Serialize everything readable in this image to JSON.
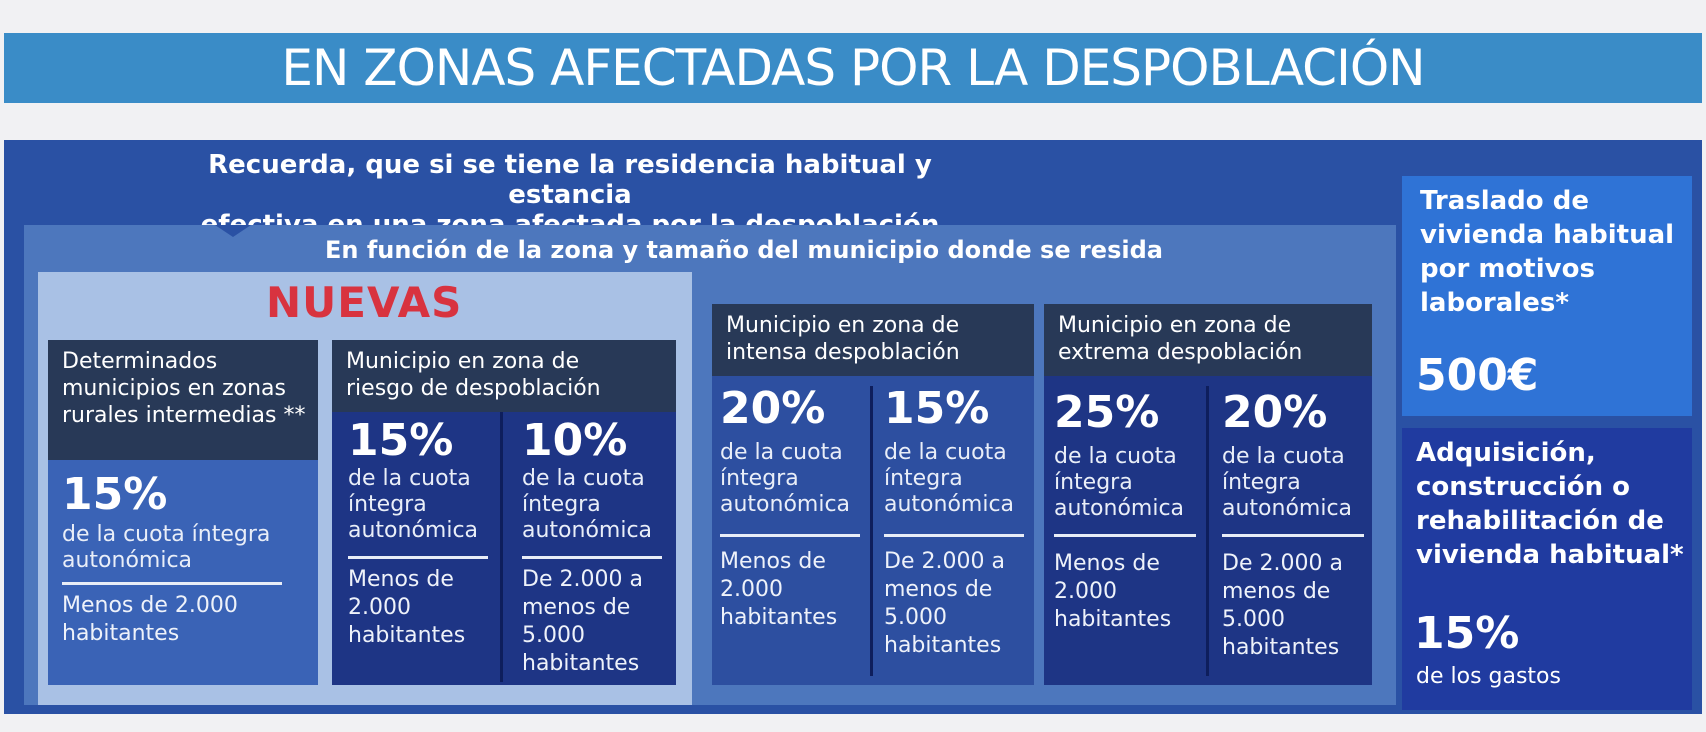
{
  "banner": {
    "title": "EN ZONAS AFECTADAS POR LA DESPOBLACIÓN"
  },
  "intro": {
    "line1": "Recuerda, que si se tiene la residencia habitual y estancia",
    "line2": "efectiva en una zona afectada por la despoblación"
  },
  "zone": {
    "subtitle": "En función de la zona y tamaño del municipio donde se resida",
    "nuevas_label": "NUEVAS",
    "rural": {
      "header": [
        "Determinados",
        "municipios en zonas",
        "rurales intermedias **"
      ],
      "pct": "15%",
      "desc": [
        "de la cuota íntegra",
        "autonómica"
      ],
      "pop": [
        "Menos de 2.000",
        "habitantes"
      ]
    },
    "riesgo": {
      "header": [
        "Municipio en zona de",
        "riesgo de despoblación"
      ],
      "a": {
        "pct": "15%",
        "desc": [
          "de la cuota",
          "íntegra",
          "autonómica"
        ],
        "pop": [
          "Menos de",
          "2.000",
          "habitantes"
        ]
      },
      "b": {
        "pct": "10%",
        "desc": [
          "de la cuota",
          "íntegra",
          "autonómica"
        ],
        "pop": [
          "De 2.000 a",
          "menos de",
          "5.000",
          "habitantes"
        ]
      }
    },
    "intensa": {
      "header": [
        "Municipio en zona de",
        "intensa despoblación"
      ],
      "a": {
        "pct": "20%",
        "desc": [
          "de la cuota",
          "íntegra",
          "autonómica"
        ],
        "pop": [
          "Menos de",
          "2.000",
          "habitantes"
        ]
      },
      "b": {
        "pct": "15%",
        "desc": [
          "de la cuota",
          "íntegra",
          "autonómica"
        ],
        "pop": [
          "De 2.000 a",
          "menos de",
          "5.000",
          "habitantes"
        ]
      }
    },
    "extrema": {
      "header": [
        "Municipio en zona de",
        "extrema despoblación"
      ],
      "a": {
        "pct": "25%",
        "desc": [
          "de la cuota",
          "íntegra",
          "autonómica"
        ],
        "pop": [
          "Menos de",
          "2.000",
          "habitantes"
        ]
      },
      "b": {
        "pct": "20%",
        "desc": [
          "de la cuota",
          "íntegra",
          "autonómica"
        ],
        "pop": [
          "De 2.000 a",
          "menos de",
          "5.000",
          "habitantes"
        ]
      }
    }
  },
  "traslado": {
    "title": [
      "Traslado de",
      "vivienda habitual",
      "por motivos",
      "laborales*"
    ],
    "amount": "500€"
  },
  "adquisicion": {
    "title": [
      "Adquisición,",
      "construcción o",
      "rehabilitación de",
      "vivienda habitual*"
    ],
    "pct": "15%",
    "note": "de los gastos"
  },
  "colors": {
    "banner": "#3a8cc7",
    "panel": "#2a51a4",
    "zone_area": "#4d77bd",
    "nuevas_box": "#a9c1e5",
    "nuevas_text": "#d8333f",
    "header_dark": "#283957",
    "traslado": "#2f73d6",
    "adquisicion": "#203ba0"
  }
}
